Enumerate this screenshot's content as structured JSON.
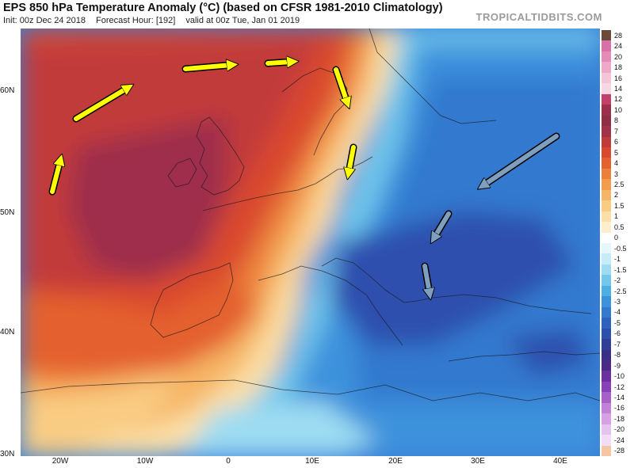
{
  "header": {
    "title": "EPS 850 hPa Temperature Anomaly (°C) (based on CFSR 1981-2010 Climatology)",
    "init": "Init: 00z Dec 24 2018",
    "forecast_hour": "Forecast Hour: [192]",
    "valid": "valid at 00z Tue, Jan 01 2019",
    "brand": "TROPICALTIDBITS.COM"
  },
  "axes": {
    "lat_labels": [
      "60N",
      "50N",
      "40N",
      "30N"
    ],
    "lon_labels": [
      "20W",
      "10W",
      "0",
      "10E",
      "20E",
      "30E",
      "40E"
    ]
  },
  "colorbar": {
    "labels": [
      "28",
      "24",
      "20",
      "18",
      "16",
      "14",
      "12",
      "10",
      "8",
      "7",
      "6",
      "5",
      "4",
      "3",
      "2.5",
      "2",
      "1.5",
      "1",
      "0.5",
      "0",
      "-0.5",
      "-1",
      "-1.5",
      "-2",
      "-2.5",
      "-3",
      "-4",
      "-5",
      "-6",
      "-7",
      "-8",
      "-9",
      "-10",
      "-12",
      "-14",
      "-16",
      "-18",
      "-20",
      "-24",
      "-28"
    ],
    "colors": [
      "#6b4a3a",
      "#d970a8",
      "#e68ab8",
      "#f0a8c8",
      "#f6c4d8",
      "#f8d6e2",
      "#c2406a",
      "#9e2f4c",
      "#8f2f45",
      "#a03347",
      "#c23b3b",
      "#d9482f",
      "#e4602e",
      "#ec7f3a",
      "#f29c4c",
      "#f6b565",
      "#f9cc84",
      "#fbdfa6",
      "#fdefcc",
      "#ffffff",
      "#e6f7fb",
      "#c6ecf7",
      "#9ddcf2",
      "#72c8ec",
      "#4cb0e4",
      "#3d92dc",
      "#3379cf",
      "#2f62bf",
      "#2d4fae",
      "#2f3f98",
      "#3a2f88",
      "#4a2a86",
      "#6a2fa0",
      "#8a40b8",
      "#a85fca",
      "#c280d8",
      "#d6a0e3",
      "#e6c2ee",
      "#f2dcf6",
      "#f6c6a2"
    ]
  },
  "arrows": {
    "yellow_color": "#ffff00",
    "gray_color": "#7f9fbf"
  }
}
